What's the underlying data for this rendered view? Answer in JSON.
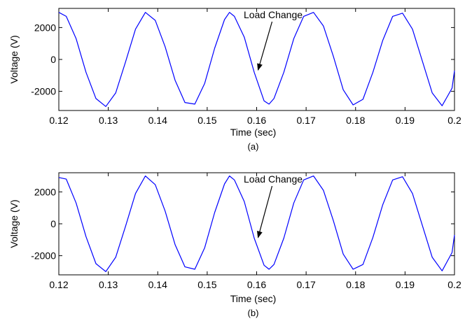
{
  "chart_data": [
    {
      "type": "line",
      "panel_label": "(a)",
      "xlabel": "Time (sec)",
      "ylabel": "Voltage (V)",
      "xlim": [
        0.12,
        0.2
      ],
      "ylim": [
        -3200,
        3200
      ],
      "xticks": [
        "0.12",
        "0.13",
        "0.14",
        "0.15",
        "0.16",
        "0.17",
        "0.18",
        "0.19",
        "0.2"
      ],
      "yticks": [
        "2000",
        "0",
        "-2000"
      ],
      "annotation": {
        "text": "Load Change",
        "x": 0.16,
        "y": -750
      },
      "grid": false,
      "line_color": "#0000ff",
      "series": [
        {
          "x": [
            0.12,
            0.1215,
            0.1235,
            0.1255,
            0.1275,
            0.1295,
            0.1315,
            0.1335,
            0.1355,
            0.1375,
            0.1395,
            0.1415,
            0.1435,
            0.1455,
            0.1475,
            0.1495,
            0.1515,
            0.1535,
            0.1545,
            0.1555,
            0.1575,
            0.1595,
            0.1615,
            0.1625,
            0.1635,
            0.1655,
            0.1675,
            0.1695,
            0.1715,
            0.1735,
            0.1755,
            0.1775,
            0.1795,
            0.1815,
            0.1835,
            0.1855,
            0.1875,
            0.1895,
            0.1915,
            0.1935,
            0.1955,
            0.1975,
            0.1995,
            0.2
          ],
          "values": [
            2950,
            2700,
            1300,
            -800,
            -2450,
            -2950,
            -2100,
            -150,
            1900,
            2950,
            2450,
            800,
            -1300,
            -2700,
            -2800,
            -1500,
            700,
            2500,
            2950,
            2700,
            1400,
            -800,
            -2600,
            -2800,
            -2450,
            -800,
            1300,
            2700,
            2950,
            2100,
            200,
            -1900,
            -2850,
            -2500,
            -800,
            1200,
            2700,
            2900,
            1900,
            -100,
            -2100,
            -2900,
            -1800,
            -700
          ]
        }
      ]
    },
    {
      "type": "line",
      "panel_label": "(b)",
      "xlabel": "Time (sec)",
      "ylabel": "Voltage (V)",
      "xlim": [
        0.12,
        0.2
      ],
      "ylim": [
        -3200,
        3200
      ],
      "xticks": [
        "0.12",
        "0.13",
        "0.14",
        "0.15",
        "0.16",
        "0.17",
        "0.18",
        "0.19",
        "0.2"
      ],
      "yticks": [
        "2000",
        "0",
        "-2000"
      ],
      "annotation": {
        "text": "Load Change",
        "x": 0.16,
        "y": -950
      },
      "grid": false,
      "line_color": "#0000ff",
      "series": [
        {
          "x": [
            0.12,
            0.1215,
            0.1235,
            0.1255,
            0.1275,
            0.1295,
            0.1315,
            0.1335,
            0.1355,
            0.1375,
            0.1395,
            0.1415,
            0.1435,
            0.1455,
            0.1475,
            0.1495,
            0.1515,
            0.1535,
            0.1545,
            0.1555,
            0.1575,
            0.1595,
            0.1615,
            0.1625,
            0.1635,
            0.1655,
            0.1675,
            0.1695,
            0.1715,
            0.1735,
            0.1755,
            0.1775,
            0.1795,
            0.1815,
            0.1835,
            0.1855,
            0.1875,
            0.1895,
            0.1915,
            0.1935,
            0.1955,
            0.1975,
            0.1995,
            0.2
          ],
          "values": [
            2900,
            2800,
            1300,
            -800,
            -2500,
            -3000,
            -2100,
            -150,
            1900,
            3000,
            2450,
            800,
            -1300,
            -2700,
            -2850,
            -1500,
            700,
            2500,
            3000,
            2750,
            1400,
            -900,
            -2600,
            -2850,
            -2550,
            -900,
            1300,
            2750,
            3000,
            2100,
            200,
            -1900,
            -2850,
            -2550,
            -850,
            1200,
            2750,
            2950,
            1900,
            -100,
            -2100,
            -2950,
            -1800,
            -700
          ]
        }
      ]
    }
  ]
}
